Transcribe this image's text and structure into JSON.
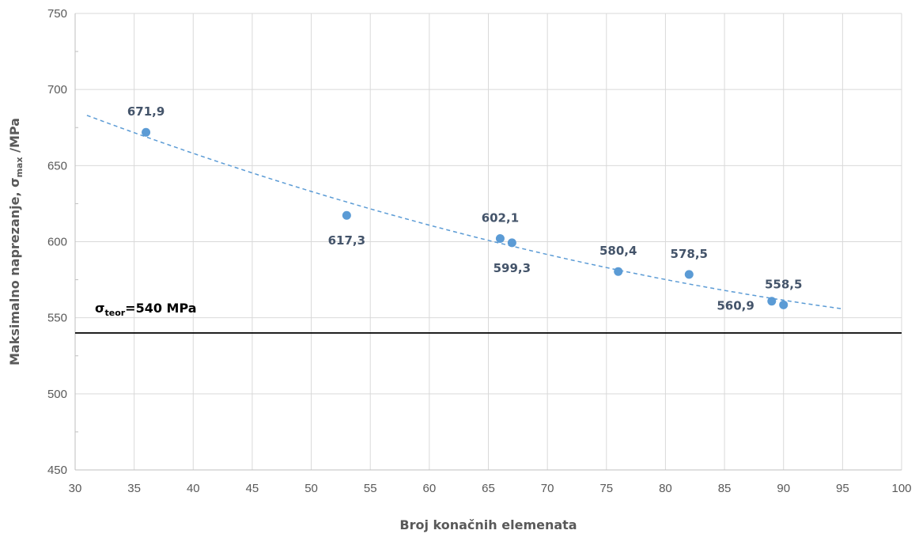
{
  "chart_data": {
    "type": "scatter",
    "xlim": [
      30,
      100
    ],
    "ylim": [
      450,
      750
    ],
    "x_ticks": [
      30,
      35,
      40,
      45,
      50,
      55,
      60,
      65,
      70,
      75,
      80,
      85,
      90,
      95,
      100
    ],
    "y_ticks": [
      450,
      500,
      550,
      600,
      650,
      700,
      750
    ],
    "grid": true,
    "xlabel": "Broj konačnih elemenata",
    "ylabel": {
      "main": "Maksimalno naprezanje, σ",
      "sub": "max",
      "tail": " /MPa"
    },
    "points": [
      {
        "x": 36,
        "y": 671.9,
        "label": "671,9",
        "label_pos": "above"
      },
      {
        "x": 53,
        "y": 617.3,
        "label": "617,3",
        "label_pos": "below"
      },
      {
        "x": 66,
        "y": 602.1,
        "label": "602,1",
        "label_pos": "above"
      },
      {
        "x": 67,
        "y": 599.3,
        "label": "599,3",
        "label_pos": "below"
      },
      {
        "x": 76,
        "y": 580.4,
        "label": "580,4",
        "label_pos": "above"
      },
      {
        "x": 82,
        "y": 578.5,
        "label": "578,5",
        "label_pos": "above"
      },
      {
        "x": 89,
        "y": 560.9,
        "label": "560,9",
        "label_pos": "left"
      },
      {
        "x": 90,
        "y": 558.5,
        "label": "558,5",
        "label_pos": "above"
      }
    ],
    "trendline": {
      "style": "dashed",
      "x_range": [
        31,
        95
      ]
    },
    "reference_line": {
      "y": 540,
      "label_main": "σ",
      "label_sub": "teor",
      "label_tail": "=540 MPa"
    },
    "colors": {
      "points": "#5b9bd5",
      "trendline": "#5b9bd5",
      "reference": "#000000",
      "grid": "#d9d9d9"
    }
  }
}
